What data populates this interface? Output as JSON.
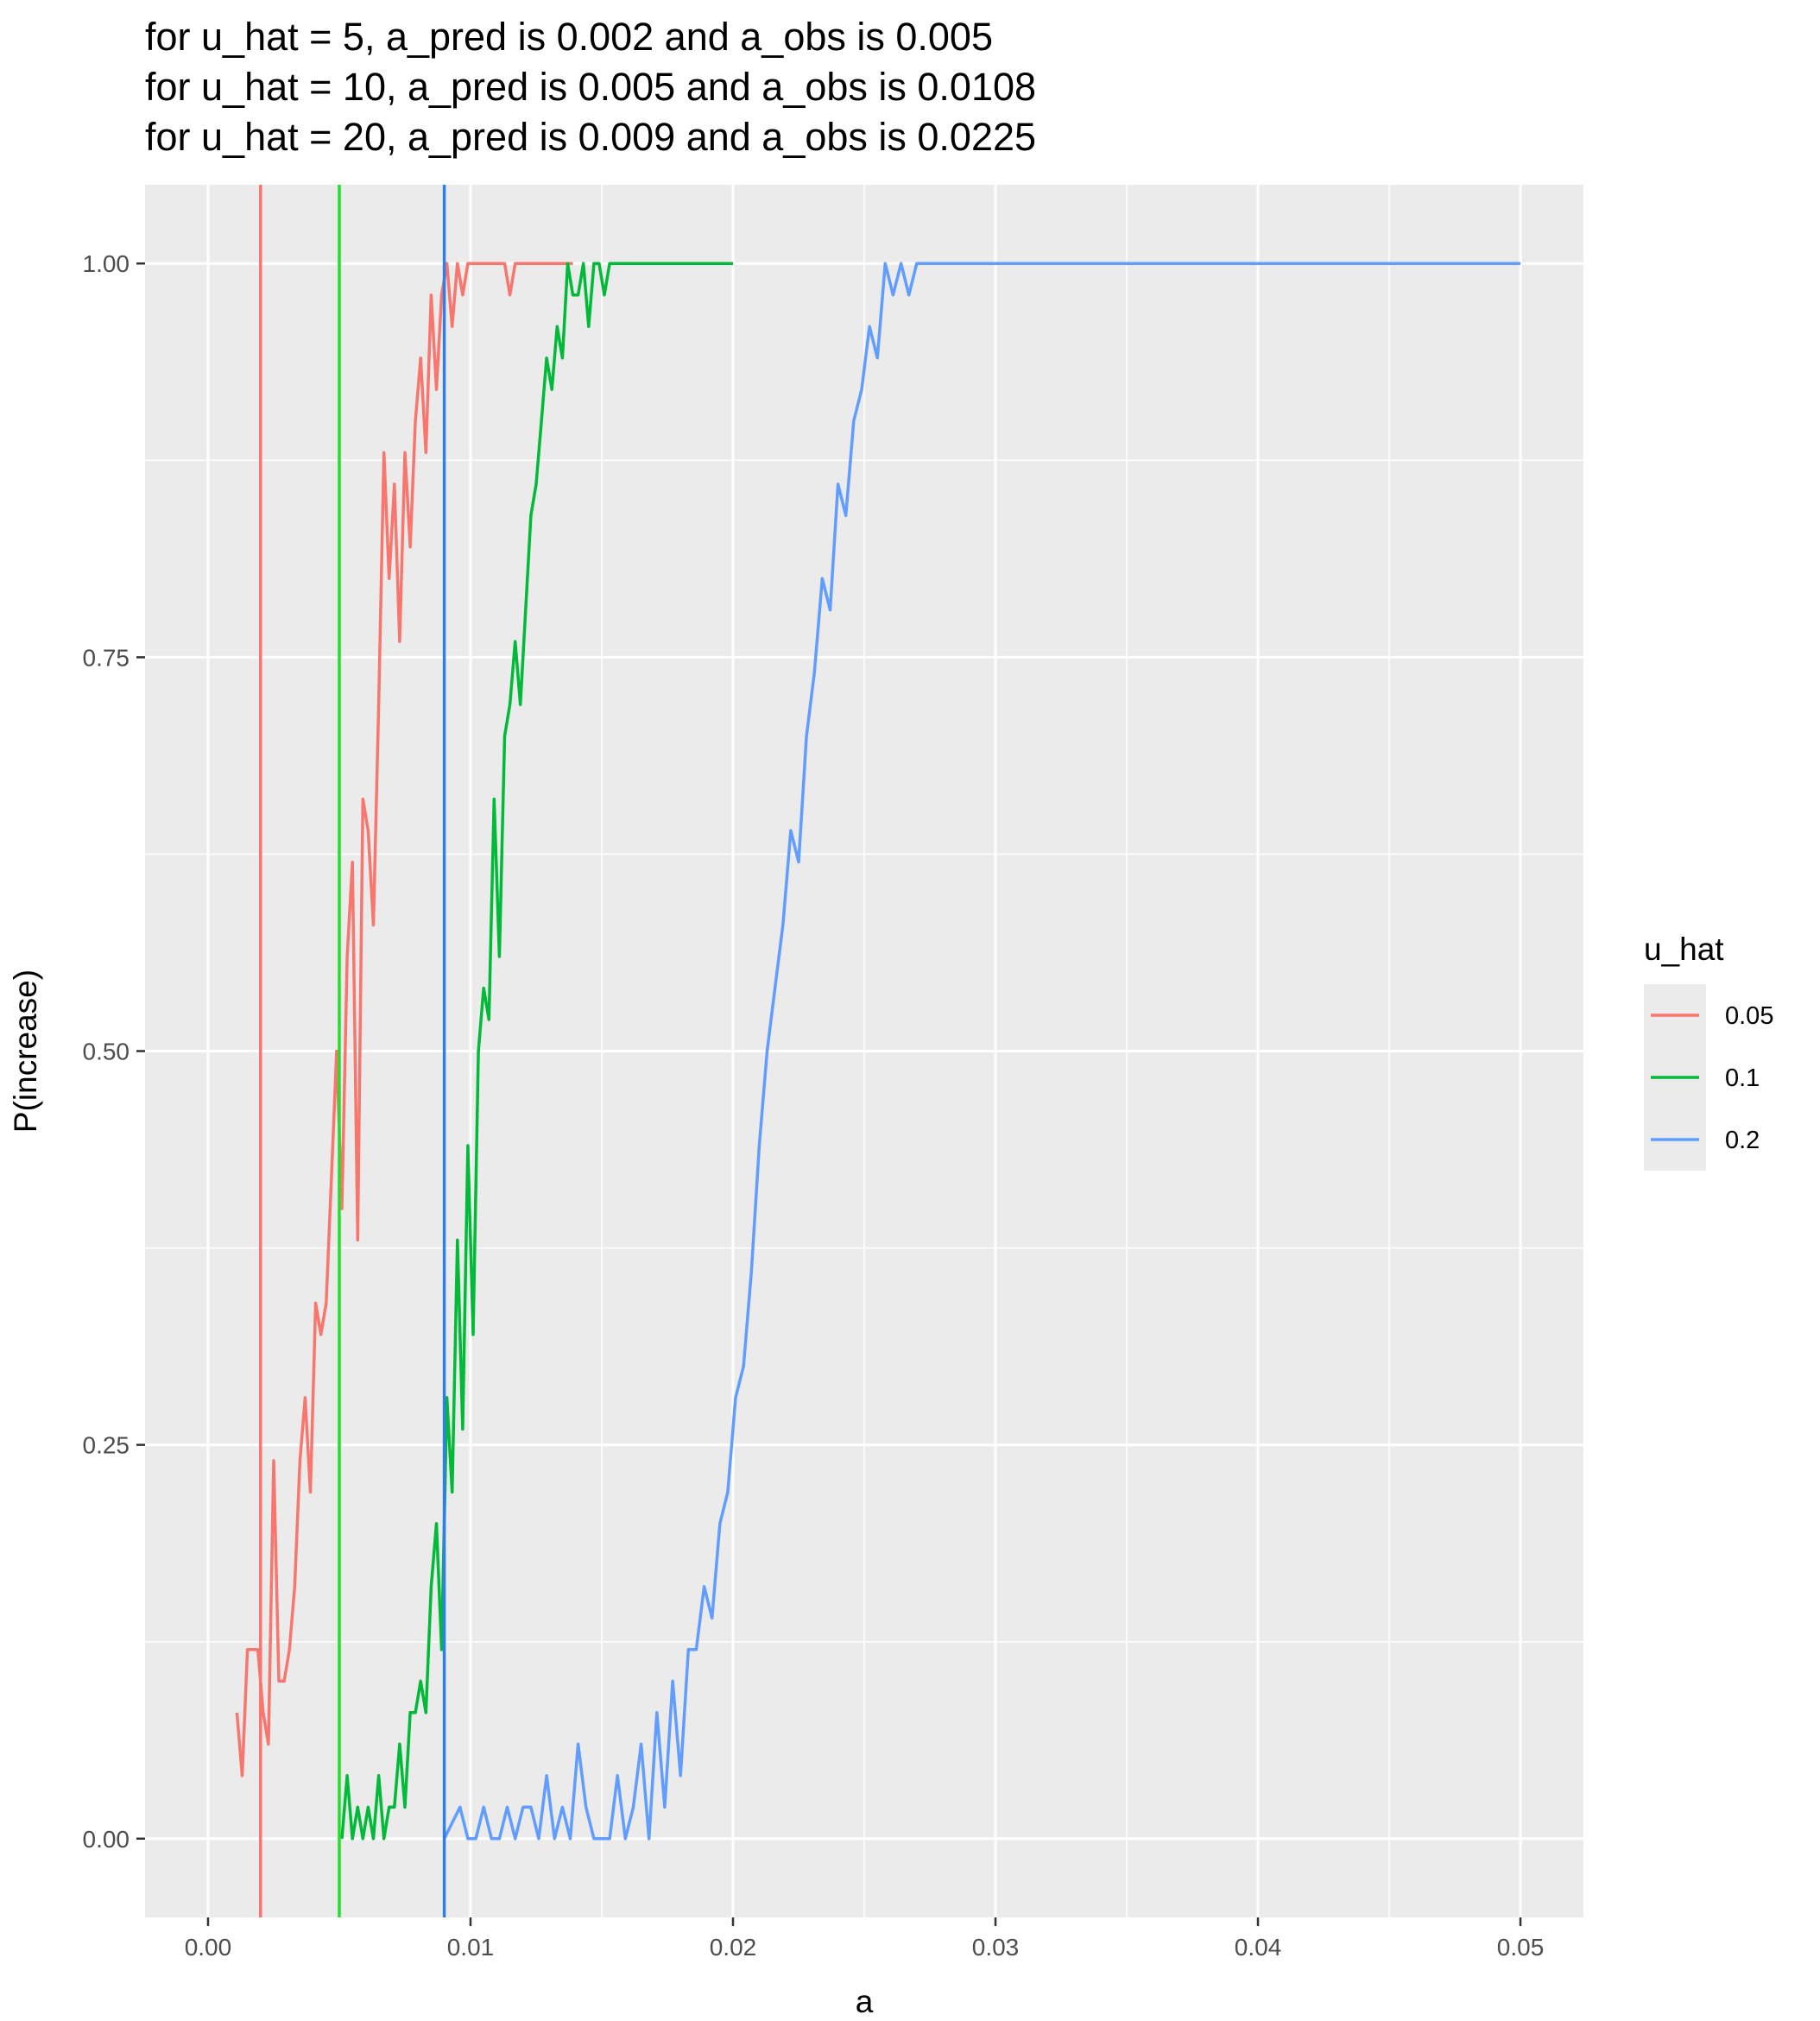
{
  "chart_data": {
    "type": "line",
    "title_lines": [
      "for u_hat = 5,   a_pred is 0.002 and a_obs is 0.005",
      "for u_hat = 10, a_pred is 0.005 and a_obs is 0.0108",
      "for u_hat = 20, a_pred is 0.009 and a_obs is 0.0225"
    ],
    "xlabel": "a",
    "ylabel": "P(increase)",
    "xlim": [
      -0.0024,
      0.0524
    ],
    "ylim": [
      -0.05,
      1.05
    ],
    "x_ticks": [
      0.0,
      0.01,
      0.02,
      0.03,
      0.04,
      0.05
    ],
    "x_tick_labels": [
      "0.00",
      "0.01",
      "0.02",
      "0.03",
      "0.04",
      "0.05"
    ],
    "y_ticks": [
      0.0,
      0.25,
      0.5,
      0.75,
      1.0
    ],
    "y_tick_labels": [
      "0.00",
      "0.25",
      "0.50",
      "0.75",
      "1.00"
    ],
    "grid": true,
    "legend": {
      "title": "u_hat",
      "placement": "right",
      "entries": [
        "0.05",
        "0.1",
        "0.2"
      ]
    },
    "colors": {
      "0.05": "#F8766D",
      "0.1": "#00BA38",
      "0.2": "#619CFF",
      "panel": "#EBEBEB",
      "grid": "#FFFFFF"
    },
    "vlines": [
      {
        "x": 0.002,
        "color": "#F8766D"
      },
      {
        "x": 0.005,
        "color": "#22E02A"
      },
      {
        "x": 0.009,
        "color": "#2F7FEA"
      }
    ],
    "series": [
      {
        "name": "0.05",
        "color": "#F8766D",
        "x": [
          0.0011,
          0.0013,
          0.0015,
          0.0017,
          0.0019,
          0.0021,
          0.0023,
          0.0025,
          0.0027,
          0.0029,
          0.0031,
          0.0033,
          0.0035,
          0.0037,
          0.0039,
          0.0041,
          0.0043,
          0.0045,
          0.0047,
          0.0049,
          0.0051,
          0.0053,
          0.0055,
          0.0057,
          0.0059,
          0.0061,
          0.0063,
          0.0065,
          0.0067,
          0.0069,
          0.0071,
          0.0073,
          0.0075,
          0.0077,
          0.0079,
          0.0081,
          0.0083,
          0.0085,
          0.0087,
          0.0089,
          0.0091,
          0.0093,
          0.0095,
          0.0097,
          0.0099,
          0.0101,
          0.0103,
          0.0105,
          0.0107,
          0.0109,
          0.0111,
          0.0113,
          0.0115,
          0.0117,
          0.0119,
          0.0121,
          0.0123,
          0.0125,
          0.0127,
          0.0129,
          0.0131,
          0.0133,
          0.0135,
          0.0137,
          0.0139
        ],
        "y": [
          0.08,
          0.04,
          0.12,
          0.12,
          0.12,
          0.08,
          0.06,
          0.24,
          0.1,
          0.1,
          0.12,
          0.16,
          0.24,
          0.28,
          0.22,
          0.34,
          0.32,
          0.34,
          0.42,
          0.5,
          0.4,
          0.56,
          0.62,
          0.38,
          0.66,
          0.64,
          0.58,
          0.72,
          0.88,
          0.8,
          0.86,
          0.76,
          0.88,
          0.82,
          0.9,
          0.94,
          0.88,
          0.98,
          0.92,
          0.98,
          1.0,
          0.96,
          1.0,
          0.98,
          1.0,
          1.0,
          1.0,
          1.0,
          1.0,
          1.0,
          1.0,
          1.0,
          0.98,
          1.0,
          1.0,
          1.0,
          1.0,
          1.0,
          1.0,
          1.0,
          1.0,
          1.0,
          1.0,
          1.0,
          1.0
        ]
      },
      {
        "name": "0.1",
        "color": "#00BA38",
        "x": [
          0.0051,
          0.0053,
          0.0055,
          0.0057,
          0.0059,
          0.0061,
          0.0063,
          0.0065,
          0.0067,
          0.0069,
          0.0071,
          0.0073,
          0.0075,
          0.0077,
          0.0079,
          0.0081,
          0.0083,
          0.0085,
          0.0087,
          0.0089,
          0.0091,
          0.0093,
          0.0095,
          0.0097,
          0.0099,
          0.0101,
          0.0103,
          0.0105,
          0.0107,
          0.0109,
          0.0111,
          0.0113,
          0.0115,
          0.0117,
          0.0119,
          0.0121,
          0.0123,
          0.0125,
          0.0127,
          0.0129,
          0.0131,
          0.0133,
          0.0135,
          0.0137,
          0.0139,
          0.0141,
          0.0143,
          0.0145,
          0.0147,
          0.0149,
          0.0151,
          0.0153,
          0.0155,
          0.0157,
          0.0159,
          0.0161,
          0.0165,
          0.017,
          0.0175,
          0.018,
          0.0185,
          0.019,
          0.0195,
          0.02
        ],
        "y": [
          0.0,
          0.04,
          0.0,
          0.02,
          0.0,
          0.02,
          0.0,
          0.04,
          0.0,
          0.02,
          0.02,
          0.06,
          0.02,
          0.08,
          0.08,
          0.1,
          0.08,
          0.16,
          0.2,
          0.12,
          0.28,
          0.22,
          0.38,
          0.26,
          0.44,
          0.32,
          0.5,
          0.54,
          0.52,
          0.66,
          0.56,
          0.7,
          0.72,
          0.76,
          0.72,
          0.78,
          0.84,
          0.86,
          0.9,
          0.94,
          0.92,
          0.96,
          0.94,
          1.0,
          0.98,
          0.98,
          1.0,
          0.96,
          1.0,
          1.0,
          0.98,
          1.0,
          1.0,
          1.0,
          1.0,
          1.0,
          1.0,
          1.0,
          1.0,
          1.0,
          1.0,
          1.0,
          1.0,
          1.0
        ]
      },
      {
        "name": "0.2",
        "color": "#619CFF",
        "x": [
          0.009,
          0.0093,
          0.0096,
          0.0099,
          0.0102,
          0.0105,
          0.0108,
          0.0111,
          0.0114,
          0.0117,
          0.012,
          0.0123,
          0.0126,
          0.0129,
          0.0132,
          0.0135,
          0.0138,
          0.0141,
          0.0144,
          0.0147,
          0.015,
          0.0153,
          0.0156,
          0.0159,
          0.0162,
          0.0165,
          0.0168,
          0.0171,
          0.0174,
          0.0177,
          0.018,
          0.0183,
          0.0186,
          0.0189,
          0.0192,
          0.0195,
          0.0198,
          0.0201,
          0.0204,
          0.0207,
          0.021,
          0.0213,
          0.0216,
          0.0219,
          0.0222,
          0.0225,
          0.0228,
          0.0231,
          0.0234,
          0.0237,
          0.024,
          0.0243,
          0.0246,
          0.0249,
          0.0252,
          0.0255,
          0.0258,
          0.0261,
          0.0264,
          0.0267,
          0.027,
          0.0273,
          0.0276,
          0.0279,
          0.0282,
          0.0285,
          0.03,
          0.0325,
          0.035,
          0.0375,
          0.04,
          0.0425,
          0.045,
          0.0475,
          0.05
        ],
        "y": [
          0.0,
          0.01,
          0.02,
          0.0,
          0.0,
          0.02,
          0.0,
          0.0,
          0.02,
          0.0,
          0.02,
          0.02,
          0.0,
          0.04,
          0.0,
          0.02,
          0.0,
          0.06,
          0.02,
          0.0,
          0.0,
          0.0,
          0.04,
          0.0,
          0.02,
          0.06,
          0.0,
          0.08,
          0.02,
          0.1,
          0.04,
          0.12,
          0.12,
          0.16,
          0.14,
          0.2,
          0.22,
          0.28,
          0.3,
          0.36,
          0.44,
          0.5,
          0.54,
          0.58,
          0.64,
          0.62,
          0.7,
          0.74,
          0.8,
          0.78,
          0.86,
          0.84,
          0.9,
          0.92,
          0.96,
          0.94,
          1.0,
          0.98,
          1.0,
          0.98,
          1.0,
          1.0,
          1.0,
          1.0,
          1.0,
          1.0,
          1.0,
          1.0,
          1.0,
          1.0,
          1.0,
          1.0,
          1.0,
          1.0,
          1.0
        ]
      }
    ]
  }
}
